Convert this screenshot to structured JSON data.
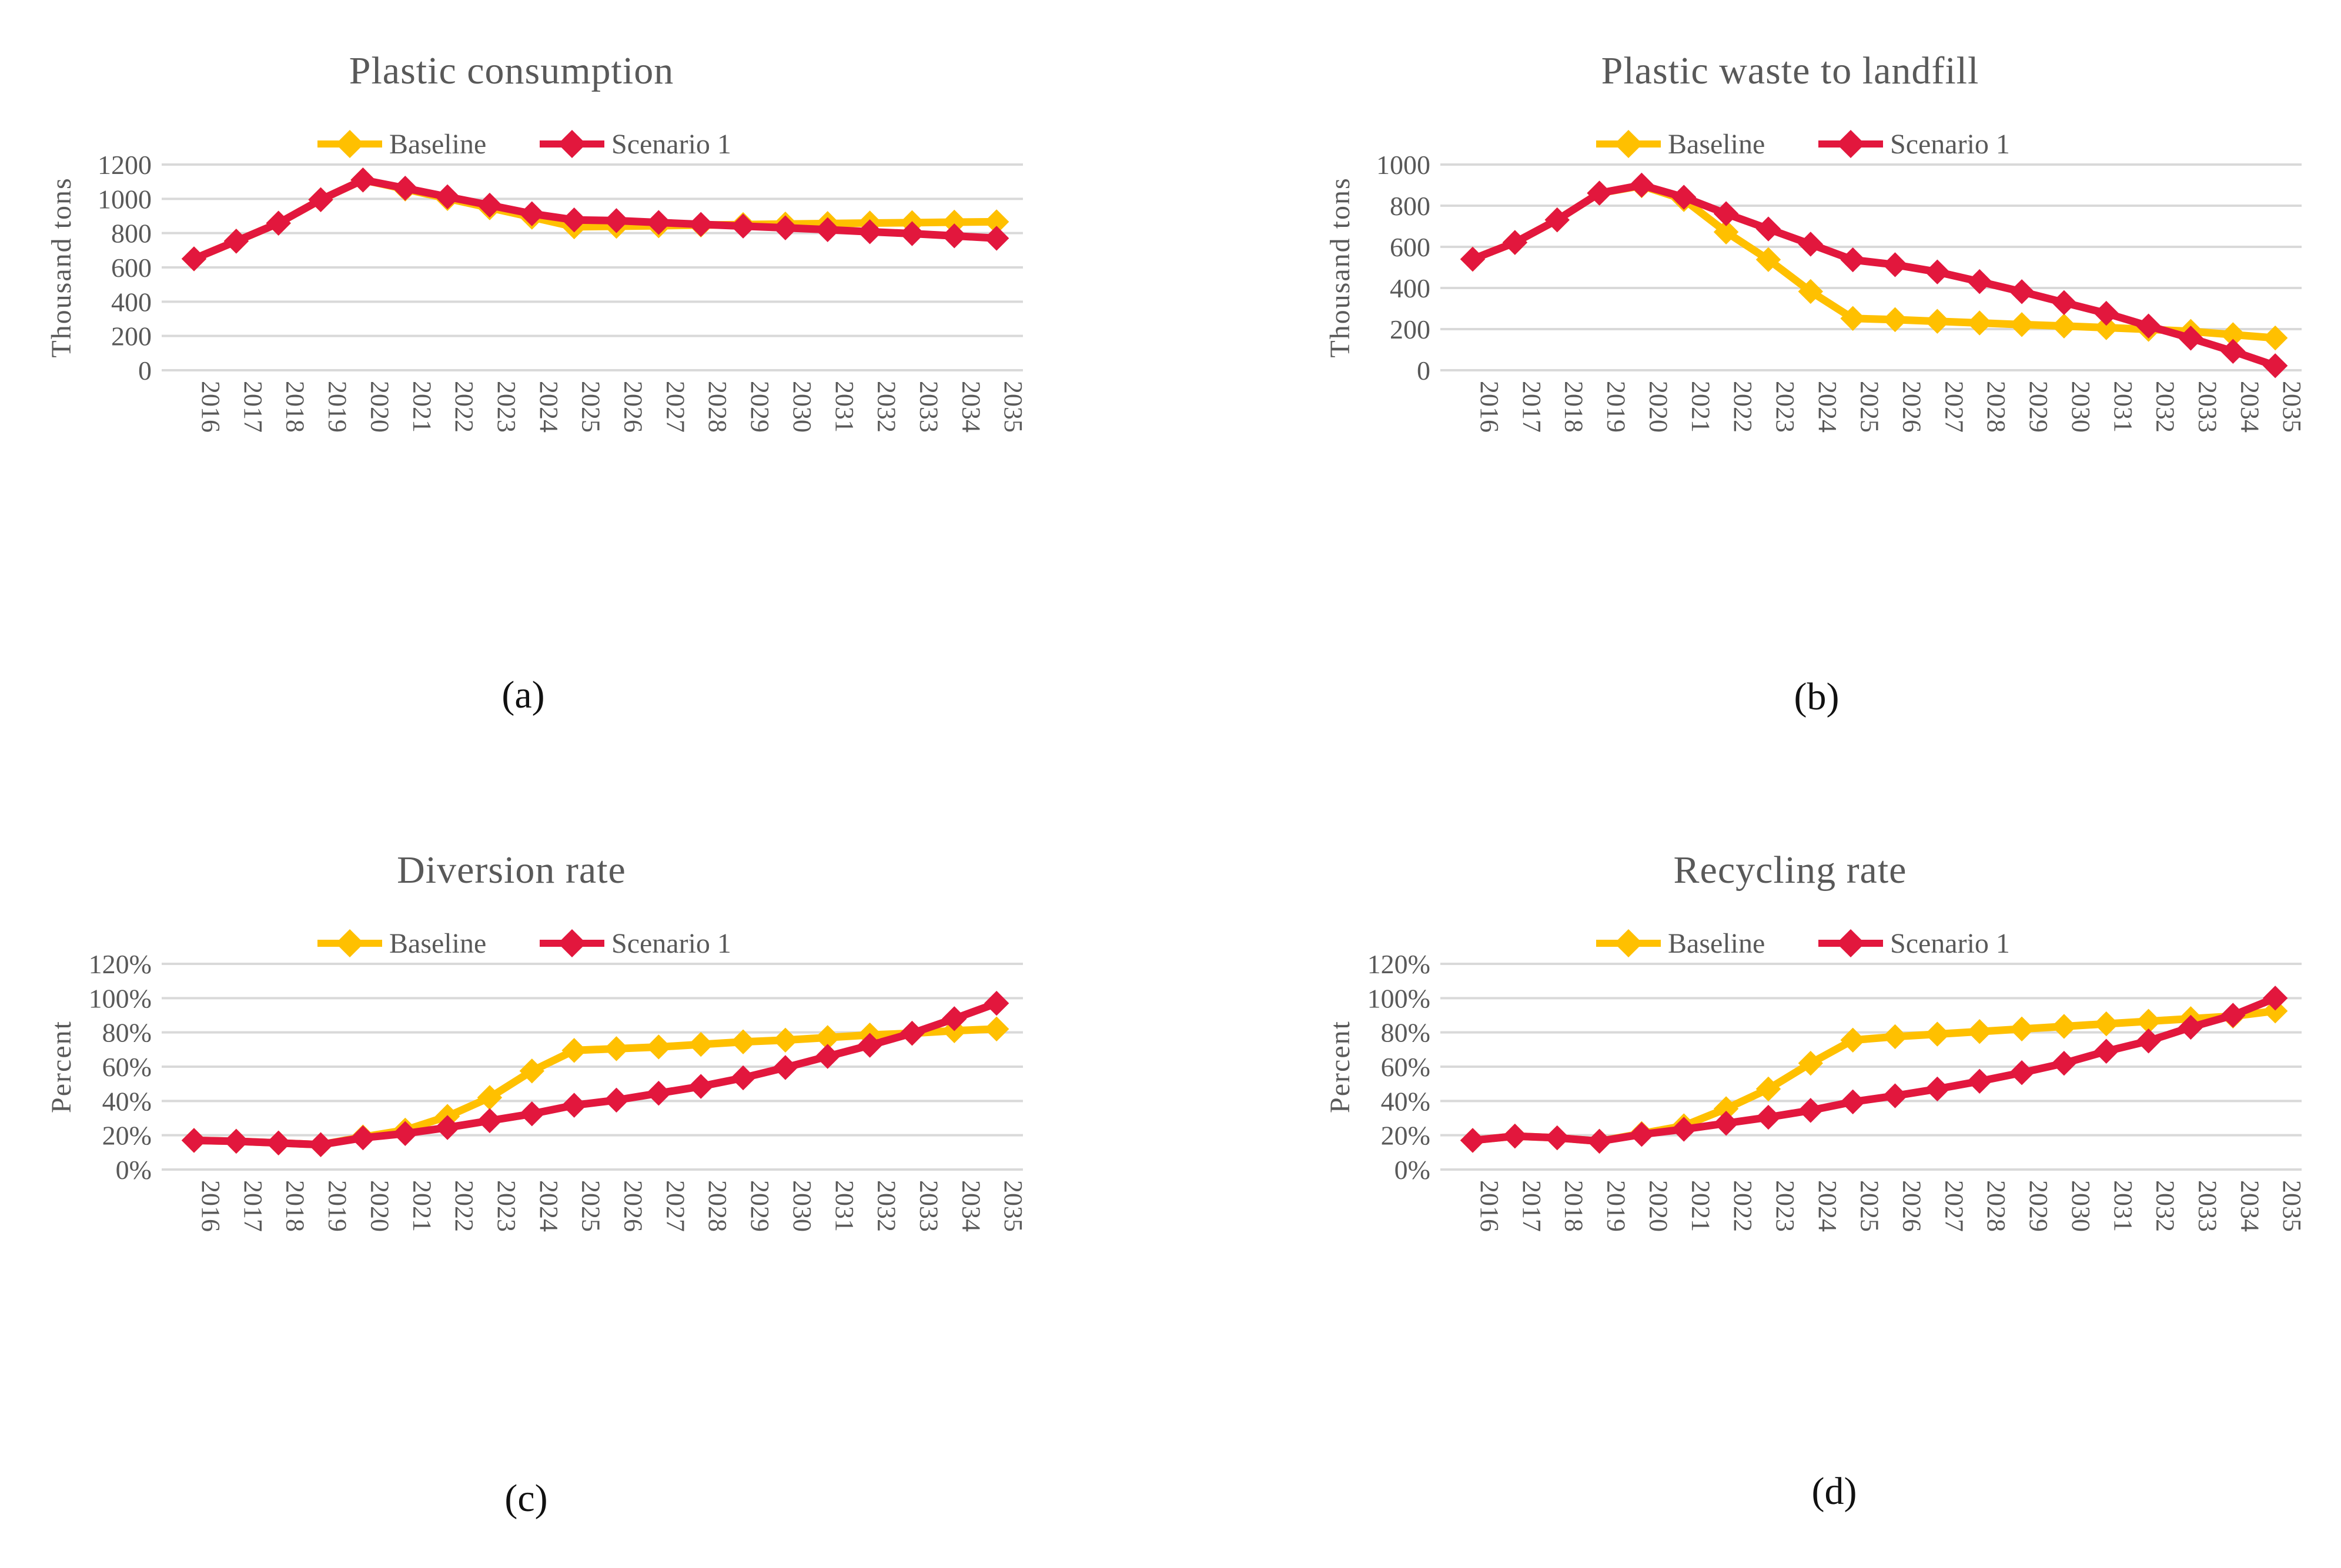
{
  "figure": {
    "background": "#ffffff",
    "description": "Four line charts comparing Baseline and Scenario 1 projections, 2016-2035"
  },
  "colors": {
    "baseline": "#FFC000",
    "scenario1": "#E2173D",
    "grid": "#D9D9D9",
    "axis_text": "#595959",
    "title_text": "#595959",
    "caption_text": "#111111"
  },
  "legend": {
    "position": "top-center",
    "items": [
      {
        "label": "Baseline",
        "series": "baseline"
      },
      {
        "label": "Scenario 1",
        "series": "scenario1"
      }
    ]
  },
  "x_categories": [
    "2016",
    "2017",
    "2018",
    "2019",
    "2020",
    "2021",
    "2022",
    "2023",
    "2024",
    "2025",
    "2026",
    "2027",
    "2028",
    "2029",
    "2030",
    "2031",
    "2032",
    "2033",
    "2034",
    "2035"
  ],
  "chart_data": [
    {
      "id": "a",
      "type": "line",
      "title": "Plastic consumption",
      "caption": "(a)",
      "ylabel": "Thousand tons",
      "ylim": [
        0,
        1200
      ],
      "ytick_step": 200,
      "ytick_format": "number",
      "grid": true,
      "legend_position": "top",
      "series": [
        {
          "name": "Baseline",
          "color_key": "baseline",
          "values": [
            650,
            753,
            858,
            995,
            1110,
            1057,
            1002,
            948,
            893,
            837,
            840,
            843,
            847,
            850,
            853,
            856,
            859,
            861,
            864,
            866
          ]
        },
        {
          "name": "Scenario 1",
          "color_key": "scenario1",
          "values": [
            650,
            753,
            858,
            995,
            1110,
            1062,
            1012,
            963,
            913,
            877,
            873,
            862,
            851,
            841,
            831,
            820,
            808,
            797,
            784,
            770
          ]
        }
      ]
    },
    {
      "id": "b",
      "type": "line",
      "title": "Plastic waste to landfill",
      "caption": "(b)",
      "ylabel": "Thousand tons",
      "ylim": [
        0,
        1000
      ],
      "ytick_step": 200,
      "ytick_format": "number",
      "grid": true,
      "legend_position": "top",
      "series": [
        {
          "name": "Baseline",
          "color_key": "baseline",
          "values": [
            540,
            621,
            731,
            861,
            897,
            830,
            672,
            538,
            383,
            252,
            246,
            238,
            230,
            222,
            215,
            207,
            199,
            189,
            173,
            157
          ]
        },
        {
          "name": "Scenario 1",
          "color_key": "scenario1",
          "values": [
            540,
            621,
            731,
            861,
            900,
            841,
            761,
            687,
            613,
            537,
            513,
            478,
            431,
            382,
            329,
            277,
            215,
            156,
            92,
            22
          ]
        }
      ]
    },
    {
      "id": "c",
      "type": "line",
      "title": "Diversion rate",
      "caption": "(c)",
      "ylabel": "Percent",
      "ylim": [
        0,
        120
      ],
      "ytick_step": 20,
      "ytick_format": "percent",
      "grid": true,
      "legend_position": "top",
      "series": [
        {
          "name": "Baseline",
          "color_key": "baseline",
          "values": [
            17,
            16.5,
            15.5,
            14.5,
            19,
            23,
            31,
            42,
            57.5,
            69.5,
            70.5,
            71.5,
            73,
            74.5,
            75.5,
            77,
            78.5,
            79.5,
            81,
            82
          ]
        },
        {
          "name": "Scenario 1",
          "color_key": "scenario1",
          "values": [
            17,
            16.5,
            15.5,
            14.5,
            18.5,
            21,
            24.5,
            28.5,
            32.5,
            37.5,
            40.5,
            44.5,
            48.5,
            53.5,
            59.5,
            66,
            72.5,
            79.5,
            88,
            97
          ]
        }
      ]
    },
    {
      "id": "d",
      "type": "line",
      "title": "Recycling rate",
      "caption": "(d)",
      "ylabel": "Percent",
      "ylim": [
        0,
        120
      ],
      "ytick_step": 20,
      "ytick_format": "percent",
      "grid": true,
      "legend_position": "top",
      "series": [
        {
          "name": "Baseline",
          "color_key": "baseline",
          "values": [
            17,
            19.5,
            18.5,
            16.5,
            21,
            25.5,
            35.5,
            47,
            62,
            75.5,
            77.5,
            79,
            80.5,
            82,
            83.5,
            85,
            86.5,
            88,
            89.5,
            92.5
          ]
        },
        {
          "name": "Scenario 1",
          "color_key": "scenario1",
          "values": [
            17,
            19.5,
            18.5,
            16.5,
            20.5,
            23.5,
            27,
            30.5,
            34.5,
            39.5,
            43,
            47,
            51.5,
            56.5,
            62,
            69,
            75,
            83,
            90,
            100
          ]
        }
      ]
    }
  ]
}
